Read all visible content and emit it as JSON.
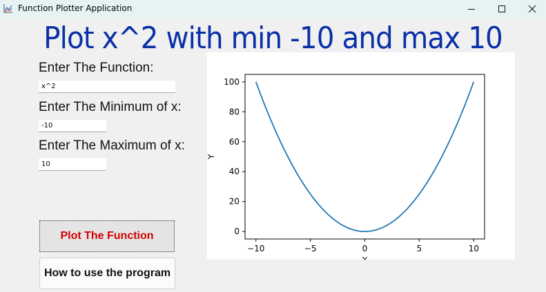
{
  "window": {
    "title": "Function Plotter Application",
    "icon": "chart-icon",
    "controls": [
      "minimize-icon",
      "maximize-icon",
      "close-icon"
    ]
  },
  "header": {
    "title": "Plot x^2 with min -10 and max 10",
    "color": "#0a2fa8"
  },
  "form": {
    "function_label": "Enter The Function:",
    "function_value": "x^2",
    "min_label": "Enter The Minimum of x:",
    "min_value": "-10",
    "max_label": "Enter The Maximum of x:",
    "max_value": "10"
  },
  "buttons": {
    "plot_label": "Plot The Function",
    "plot_color": "#d40000",
    "help_label": "How to use the program"
  },
  "chart_data": {
    "type": "line",
    "function": "x^2",
    "x": [
      -10,
      -9,
      -8,
      -7,
      -6,
      -5,
      -4,
      -3,
      -2,
      -1,
      0,
      1,
      2,
      3,
      4,
      5,
      6,
      7,
      8,
      9,
      10
    ],
    "series": [
      {
        "values": [
          100,
          81,
          64,
          49,
          36,
          25,
          16,
          9,
          4,
          1,
          0,
          1,
          4,
          9,
          16,
          25,
          36,
          49,
          64,
          81,
          100
        ]
      }
    ],
    "line_color": "#1f77b4",
    "xlim": [
      -10,
      10
    ],
    "ylim": [
      0,
      100
    ],
    "x_ticks": [
      "−10",
      "−5",
      "0",
      "5",
      "10"
    ],
    "y_ticks": [
      "0",
      "20",
      "40",
      "60",
      "80",
      "100"
    ],
    "xlabel": "X",
    "ylabel": "Y",
    "grid": false
  }
}
